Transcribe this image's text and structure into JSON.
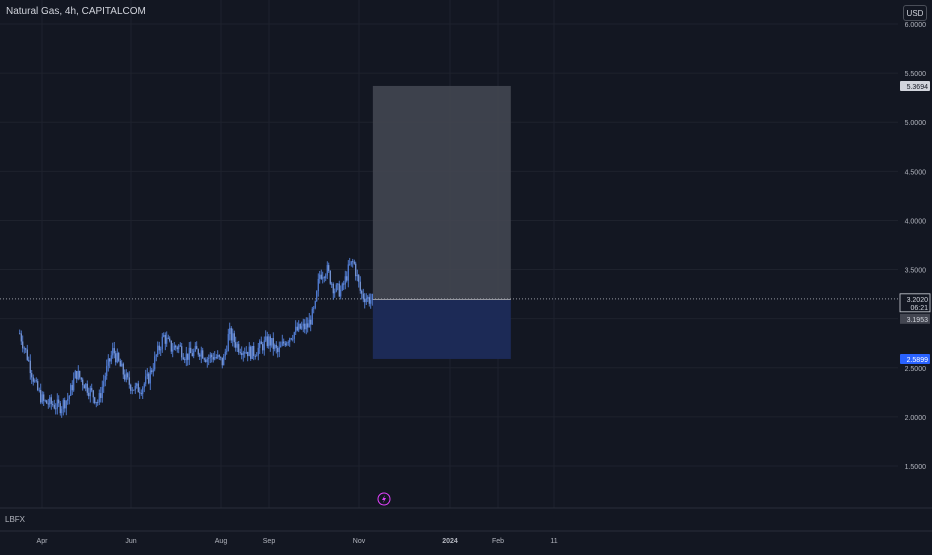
{
  "header": {
    "symbol_title": "Natural Gas, 4h, CAPITALCOM",
    "currency_button": "USD"
  },
  "footer": {
    "label": "LBFX"
  },
  "colors": {
    "background": "#131722",
    "grid": "#1e222d",
    "candle": "#5b8def",
    "profit_zone": "#434651",
    "loss_zone": "#1c2b5a",
    "price_line": "#9598a1",
    "stop_tag": "#2962ff",
    "target_tag": "#d1d4dc",
    "icon_accent": "#e040fb"
  },
  "icons": {
    "flash_marker": "lightning-icon"
  },
  "chart_data": {
    "type": "candlestick",
    "timeframe": "4h",
    "x_tick_labels": [
      "Apr",
      "Jun",
      "Aug",
      "Sep",
      "Nov",
      "2024",
      "Feb",
      "11"
    ],
    "y_tick_labels": [
      "1.5000",
      "2.0000",
      "2.5000",
      "3.0000",
      "3.5000",
      "4.0000",
      "4.5000",
      "5.0000",
      "5.5000",
      "6.0000"
    ],
    "ylim": [
      1.0,
      6.05
    ],
    "price_path": [
      [
        "Mar 17",
        2.85
      ],
      [
        "Mar 22",
        2.62
      ],
      [
        "Mar 28",
        2.3
      ],
      [
        "Apr 2",
        2.15
      ],
      [
        "Apr 8",
        2.13
      ],
      [
        "Apr 13",
        2.1
      ],
      [
        "Apr 19",
        2.2
      ],
      [
        "Apr 24",
        2.45
      ],
      [
        "Apr 29",
        2.35
      ],
      [
        "May 4",
        2.25
      ],
      [
        "May 9",
        2.15
      ],
      [
        "May 14",
        2.45
      ],
      [
        "May 19",
        2.68
      ],
      [
        "May 24",
        2.5
      ],
      [
        "May 29",
        2.35
      ],
      [
        "Jun 3",
        2.28
      ],
      [
        "Jun 7",
        2.3
      ],
      [
        "Jun 12",
        2.4
      ],
      [
        "Jun 17",
        2.62
      ],
      [
        "Jun 22",
        2.82
      ],
      [
        "Jun 27",
        2.7
      ],
      [
        "Jul 2",
        2.72
      ],
      [
        "Jul 7",
        2.62
      ],
      [
        "Jul 12",
        2.65
      ],
      [
        "Jul 17",
        2.68
      ],
      [
        "Jul 21",
        2.6
      ],
      [
        "Jul 26",
        2.62
      ],
      [
        "Aug 1",
        2.55
      ],
      [
        "Aug 5",
        2.85
      ],
      [
        "Aug 11",
        2.72
      ],
      [
        "Aug 16",
        2.68
      ],
      [
        "Aug 21",
        2.65
      ],
      [
        "Aug 27",
        2.72
      ],
      [
        "Sep 1",
        2.78
      ],
      [
        "Sep 7",
        2.65
      ],
      [
        "Sep 12",
        2.78
      ],
      [
        "Sep 17",
        2.85
      ],
      [
        "Sep 22",
        2.9
      ],
      [
        "Sep 27",
        2.92
      ],
      [
        "Oct 2",
        3.1
      ],
      [
        "Oct 5",
        3.45
      ],
      [
        "Oct 10",
        3.5
      ],
      [
        "Oct 15",
        3.3
      ],
      [
        "Oct 20",
        3.28
      ],
      [
        "Oct 25",
        3.52
      ],
      [
        "Oct 28",
        3.58
      ],
      [
        "Nov 2",
        3.25
      ],
      [
        "Nov 7",
        3.2
      ],
      [
        "Nov 10",
        3.19
      ]
    ],
    "position": {
      "type": "long",
      "entry": 3.1953,
      "target": 5.3694,
      "stop": 2.5899,
      "start": "Nov 10",
      "end": "Feb 11"
    },
    "current_price": 3.202,
    "countdown": "06:21",
    "price_tags": {
      "target": "5.3694",
      "current": "3.2020",
      "entry": "3.1953",
      "stop": "2.5899"
    }
  }
}
